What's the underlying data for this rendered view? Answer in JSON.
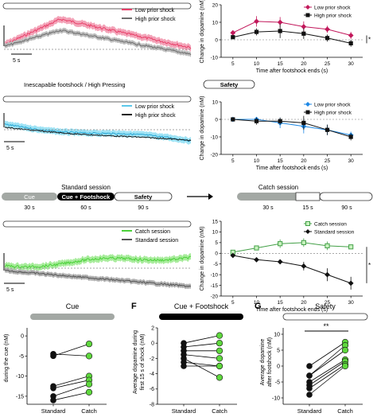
{
  "panels": {
    "sectionA": {
      "trace_legend": [
        "Low prior shock",
        "High prior shock"
      ],
      "scale_bar": "5 s",
      "colors": {
        "low": "#e8416a",
        "high": "#6e6e6e"
      }
    },
    "sectionB": {
      "title": "Inescapable footshock / High Pressing",
      "pill": "Safety",
      "trace_legend": [
        "Low prior shock",
        "High prior shock"
      ],
      "scale_bar": "5 s",
      "colors": {
        "low": "#5cc8ea",
        "high": "#1a1a1a"
      }
    },
    "schematic": {
      "standard_title": "Standard session",
      "catch_title": "Catch session",
      "standard_blocks": [
        {
          "label": "Cue",
          "duration": "30 s"
        },
        {
          "label": "Cue + Footshock",
          "duration": "60 s"
        },
        {
          "label": "Safety",
          "duration": "90 s"
        }
      ],
      "catch_durations": [
        "30 s",
        "15 s",
        "90 s"
      ]
    },
    "sectionC": {
      "trace_legend": [
        "Catch session",
        "Standard session"
      ],
      "scale_bar": "5 s",
      "colors": {
        "catch": "#4cd13a",
        "standard": "#555555"
      }
    },
    "bottom": {
      "F_letter": "F",
      "G_letter": "G",
      "titles": [
        "Cue",
        "Cue + Footshock",
        "Safety"
      ],
      "ylabel_E": "during the cue (nM)",
      "ylabel_F": [
        "Average dopamine during",
        "first 15 s of shock (nM)"
      ],
      "ylabel_G": [
        "Average dopamine",
        "after footshock (nM)"
      ],
      "xcats": [
        "Standard",
        "Catch"
      ],
      "sig": "**"
    }
  },
  "chart_data": [
    {
      "type": "line",
      "panel": "A-right",
      "xlabel": "Time after footshock ends (s)",
      "ylabel": "Change in dopamine (nM)",
      "xticks": [
        5,
        10,
        15,
        20,
        25,
        30
      ],
      "yticks": [
        -10,
        0,
        10,
        20
      ],
      "ylim": [
        -10,
        20
      ],
      "series": [
        {
          "name": "Low prior shock",
          "x": [
            5,
            10,
            15,
            20,
            25,
            30
          ],
          "y": [
            4,
            10.5,
            10,
            7.5,
            6,
            2.5
          ],
          "err": [
            1,
            3,
            3,
            3,
            2,
            2
          ],
          "color": "#c2185b",
          "marker": "diamond"
        },
        {
          "name": "High prior shock",
          "x": [
            5,
            10,
            15,
            20,
            25,
            30
          ],
          "y": [
            1.5,
            4.5,
            5,
            3.5,
            1,
            -2
          ],
          "err": [
            1,
            2,
            4,
            3,
            2,
            2
          ],
          "color": "#111111",
          "marker": "square"
        }
      ],
      "annotation": "*"
    },
    {
      "type": "line",
      "panel": "B-right",
      "xlabel": "Time after footshock ends (s)",
      "ylabel": "Change in dopamine (nM)",
      "xticks": [
        5,
        10,
        15,
        20,
        25,
        30
      ],
      "yticks": [
        -20,
        -10,
        0,
        10
      ],
      "ylim": [
        -20,
        10
      ],
      "series": [
        {
          "name": "Low prior shock",
          "x": [
            5,
            10,
            15,
            20,
            25,
            30
          ],
          "y": [
            0,
            0,
            -2,
            -4,
            -6,
            -9
          ],
          "err": [
            1,
            1,
            3,
            4,
            3,
            2
          ],
          "color": "#1e88e5",
          "marker": "diamond"
        },
        {
          "name": "High prior shock",
          "x": [
            5,
            10,
            15,
            20,
            25,
            30
          ],
          "y": [
            0,
            -1,
            -1,
            -2,
            -6,
            -10
          ],
          "err": [
            1,
            2,
            2,
            4,
            3,
            2
          ],
          "color": "#111111",
          "marker": "square"
        }
      ]
    },
    {
      "type": "line",
      "panel": "C-right",
      "xlabel": "Time after footshock ends (s)",
      "ylabel": "Change in dopamine (nM)",
      "xticks": [
        5,
        10,
        15,
        20,
        25,
        30
      ],
      "yticks": [
        -20,
        -15,
        -10,
        -5,
        0,
        5,
        10,
        15
      ],
      "ylim": [
        -20,
        15
      ],
      "series": [
        {
          "name": "Catch session",
          "x": [
            5,
            10,
            15,
            20,
            25,
            30
          ],
          "y": [
            0.5,
            2.5,
            4.5,
            5,
            3.5,
            3
          ],
          "err": [
            1,
            1,
            2,
            2,
            2,
            1
          ],
          "color": "#43a047",
          "marker": "square-open"
        },
        {
          "name": "Standard session",
          "x": [
            5,
            10,
            15,
            20,
            25,
            30
          ],
          "y": [
            -1,
            -3,
            -4,
            -6,
            -10,
            -14
          ],
          "err": [
            1,
            1,
            1,
            2,
            3,
            3
          ],
          "color": "#111111",
          "marker": "diamond"
        }
      ],
      "annotation": "*"
    },
    {
      "type": "scatter",
      "panel": "E",
      "categories": [
        "Standard",
        "Catch"
      ],
      "yticks": [
        -15,
        -10,
        -5,
        0
      ],
      "ylim": [
        -17,
        2
      ],
      "pairs": [
        [
          -4.5,
          -5
        ],
        [
          -5,
          -2
        ],
        [
          -12.5,
          -10
        ],
        [
          -13,
          -11
        ],
        [
          -15,
          -12
        ],
        [
          -16,
          -14
        ]
      ]
    },
    {
      "type": "scatter",
      "panel": "F",
      "categories": [
        "Standard",
        "Catch"
      ],
      "yticks": [
        -8,
        -6,
        -4,
        -2,
        0,
        2
      ],
      "ylim": [
        -8,
        2
      ],
      "pairs": [
        [
          0,
          1
        ],
        [
          -0.5,
          0
        ],
        [
          -1,
          -1
        ],
        [
          -1.5,
          -2
        ],
        [
          -2.5,
          -3
        ],
        [
          -3,
          -3
        ],
        [
          -2,
          -4.5
        ]
      ]
    },
    {
      "type": "scatter",
      "panel": "G",
      "categories": [
        "Standard",
        "Catch"
      ],
      "yticks": [
        -10,
        -5,
        0,
        5,
        10
      ],
      "ylim": [
        -12,
        12
      ],
      "pairs": [
        [
          0,
          7.5
        ],
        [
          -3,
          6.5
        ],
        [
          -5,
          2
        ],
        [
          -6,
          1.5
        ],
        [
          -7,
          0.5
        ],
        [
          -9,
          0
        ],
        [
          -3,
          5
        ]
      ]
    }
  ]
}
